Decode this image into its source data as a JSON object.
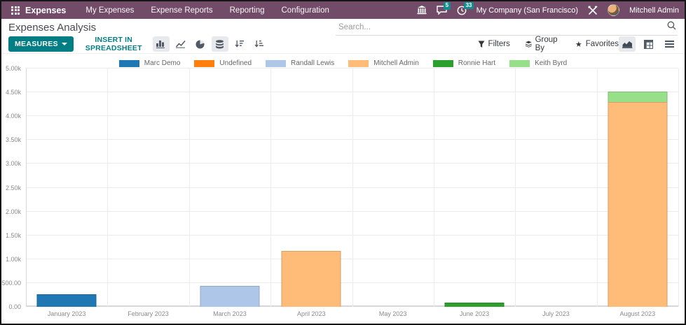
{
  "navbar": {
    "app_name": "Expenses",
    "menu_items": [
      "My Expenses",
      "Expense Reports",
      "Reporting",
      "Configuration"
    ],
    "systray": {
      "messages_badge": "5",
      "activities_badge": "33",
      "company": "My Company (San Francisco)",
      "user": "Mitchell Admin"
    },
    "color": "#714B67"
  },
  "control_panel": {
    "title": "Expenses Analysis",
    "search_placeholder": "Search..."
  },
  "toolbar": {
    "measures_label": "MEASURES",
    "insert_label": "INSERT IN SPREADSHEET",
    "filters_label": "Filters",
    "group_by_label": "Group By",
    "favorites_label": "Favorites",
    "accent_color": "#017e84",
    "icons": [
      "bar-chart",
      "line-chart",
      "pie-chart",
      "stacked",
      "sort-desc",
      "sort-asc"
    ],
    "view_switcher": [
      "graph-view",
      "pivot-view",
      "list-view"
    ]
  },
  "chart_data": {
    "type": "bar",
    "stacked": true,
    "title": "",
    "xlabel": "",
    "ylabel": "",
    "categories": [
      "January 2023",
      "February 2023",
      "March 2023",
      "April 2023",
      "May 2023",
      "June 2023",
      "July 2023",
      "August 2023"
    ],
    "series": [
      {
        "name": "Marc Demo",
        "color": "#1f77b4",
        "values": [
          270,
          0,
          0,
          0,
          0,
          0,
          0,
          0
        ]
      },
      {
        "name": "Undefined",
        "color": "#ff7f0e",
        "values": [
          0,
          0,
          0,
          0,
          0,
          0,
          0,
          0
        ]
      },
      {
        "name": "Randall Lewis",
        "color": "#aec7e8",
        "values": [
          0,
          0,
          440,
          0,
          0,
          0,
          0,
          0
        ]
      },
      {
        "name": "Mitchell Admin",
        "color": "#ffbb78",
        "values": [
          0,
          0,
          0,
          1170,
          0,
          0,
          0,
          4290
        ]
      },
      {
        "name": "Ronnie Hart",
        "color": "#2ca02c",
        "values": [
          0,
          0,
          0,
          0,
          0,
          90,
          0,
          0
        ]
      },
      {
        "name": "Keith Byrd",
        "color": "#98df8a",
        "values": [
          0,
          0,
          0,
          0,
          0,
          0,
          0,
          220
        ]
      }
    ],
    "ylim": [
      0,
      5000
    ],
    "ytick_step": 500,
    "ytick_labels": [
      "0.00",
      "500.00",
      "1.00k",
      "1.50k",
      "2.00k",
      "2.50k",
      "3.00k",
      "3.50k",
      "4.00k",
      "4.50k",
      "5.00k"
    ],
    "grid": true,
    "legend_position": "top"
  }
}
